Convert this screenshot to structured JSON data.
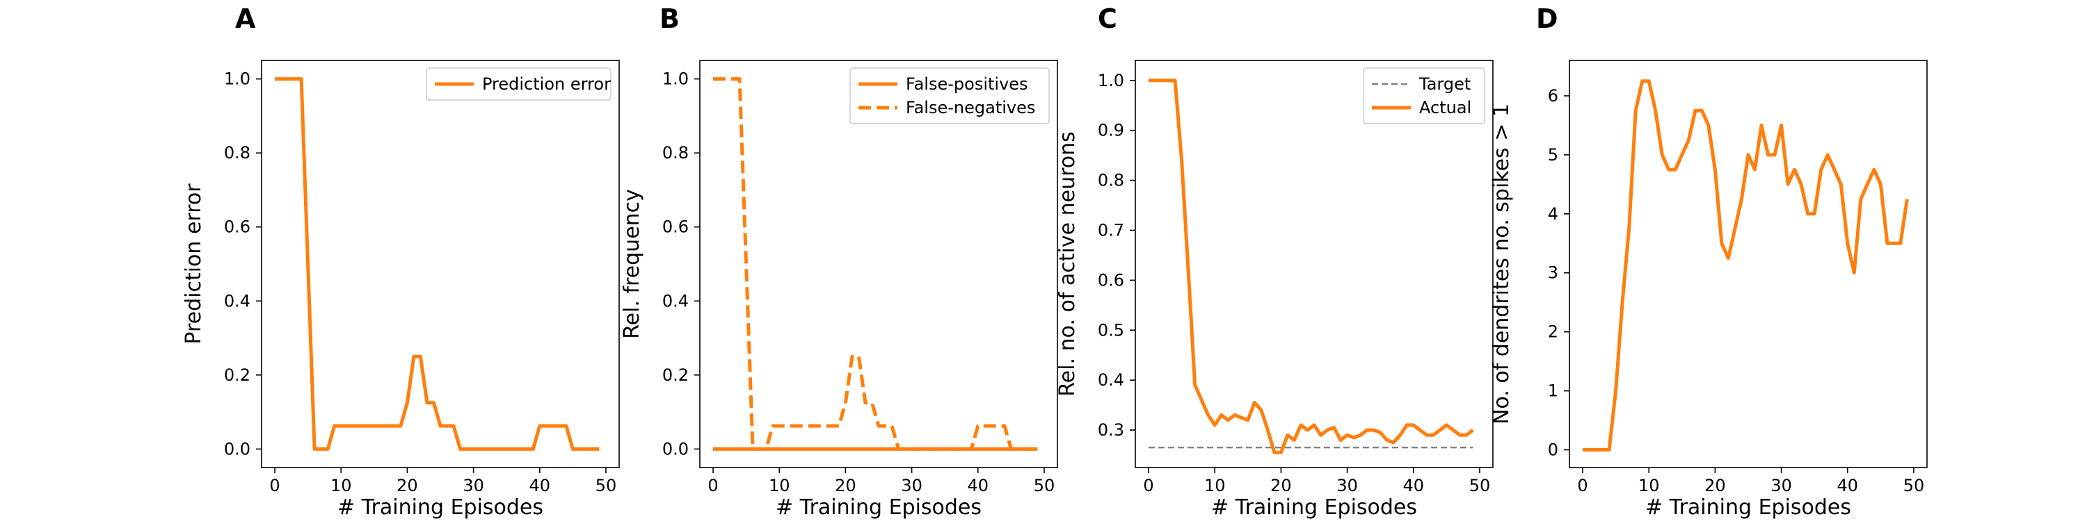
{
  "figure": {
    "panels": [
      "A",
      "B",
      "C",
      "D"
    ]
  },
  "colors": {
    "series": "#ff7f0e",
    "target": "#808080",
    "axis": "#000000",
    "legend_frame": "#cccccc"
  },
  "chart_data": [
    {
      "panel": "A",
      "type": "line",
      "title": "",
      "xlabel": "# Training Episodes",
      "ylabel": "Prediction error",
      "xlim": [
        -2,
        52
      ],
      "ylim": [
        -0.05,
        1.05
      ],
      "xticks": [
        0,
        10,
        20,
        30,
        40,
        50
      ],
      "yticks": [
        0.0,
        0.2,
        0.4,
        0.6,
        0.8,
        1.0
      ],
      "legend": "top-right",
      "grid": false,
      "series": [
        {
          "name": "Prediction error",
          "style": "solid",
          "x": [
            0,
            1,
            2,
            3,
            4,
            5,
            6,
            7,
            8,
            9,
            10,
            11,
            12,
            13,
            14,
            15,
            16,
            17,
            18,
            19,
            20,
            21,
            22,
            23,
            24,
            25,
            26,
            27,
            28,
            29,
            30,
            31,
            32,
            33,
            34,
            35,
            36,
            37,
            38,
            39,
            40,
            41,
            42,
            43,
            44,
            45,
            46,
            47,
            48,
            49
          ],
          "y": [
            1,
            1,
            1,
            1,
            1,
            0.5,
            0,
            0,
            0,
            0.0625,
            0.0625,
            0.0625,
            0.0625,
            0.0625,
            0.0625,
            0.0625,
            0.0625,
            0.0625,
            0.0625,
            0.0625,
            0.125,
            0.25,
            0.25,
            0.125,
            0.125,
            0.0625,
            0.0625,
            0.0625,
            0,
            0,
            0,
            0,
            0,
            0,
            0,
            0,
            0,
            0,
            0,
            0,
            0.0625,
            0.0625,
            0.0625,
            0.0625,
            0.0625,
            0,
            0,
            0,
            0,
            0
          ]
        }
      ]
    },
    {
      "panel": "B",
      "type": "line",
      "title": "",
      "xlabel": "# Training Episodes",
      "ylabel": "Rel. frequency",
      "xlim": [
        -2,
        52
      ],
      "ylim": [
        -0.05,
        1.05
      ],
      "xticks": [
        0,
        10,
        20,
        30,
        40,
        50
      ],
      "yticks": [
        0.0,
        0.2,
        0.4,
        0.6,
        0.8,
        1.0
      ],
      "legend": "top-right",
      "grid": false,
      "series": [
        {
          "name": "False-positives",
          "style": "solid",
          "x": [
            0,
            49
          ],
          "y": [
            0,
            0
          ]
        },
        {
          "name": "False-negatives",
          "style": "dashed",
          "x": [
            0,
            1,
            2,
            3,
            4,
            5,
            6,
            7,
            8,
            9,
            10,
            11,
            12,
            13,
            14,
            15,
            16,
            17,
            18,
            19,
            20,
            21,
            22,
            23,
            24,
            25,
            26,
            27,
            28,
            29,
            30,
            31,
            32,
            33,
            34,
            35,
            36,
            37,
            38,
            39,
            40,
            41,
            42,
            43,
            44,
            45,
            46,
            47,
            48,
            49
          ],
          "y": [
            1,
            1,
            1,
            1,
            1,
            0.5,
            0,
            0,
            0,
            0.0625,
            0.0625,
            0.0625,
            0.0625,
            0.0625,
            0.0625,
            0.0625,
            0.0625,
            0.0625,
            0.0625,
            0.0625,
            0.125,
            0.25,
            0.25,
            0.125,
            0.125,
            0.0625,
            0.0625,
            0.0625,
            0,
            0,
            0,
            0,
            0,
            0,
            0,
            0,
            0,
            0,
            0,
            0,
            0.0625,
            0.0625,
            0.0625,
            0.0625,
            0.0625,
            0,
            0,
            0,
            0,
            0
          ]
        }
      ]
    },
    {
      "panel": "C",
      "type": "line",
      "title": "",
      "xlabel": "# Training Episodes",
      "ylabel": "Rel. no. of active neurons",
      "xlim": [
        -2,
        52
      ],
      "ylim": [
        0.225,
        1.04
      ],
      "xticks": [
        0,
        10,
        20,
        30,
        40,
        50
      ],
      "yticks": [
        0.3,
        0.4,
        0.5,
        0.6,
        0.7,
        0.8,
        0.9,
        1.0
      ],
      "legend": "top-right",
      "grid": false,
      "series": [
        {
          "name": "Target",
          "style": "dashed-thin",
          "x": [
            0,
            49
          ],
          "y": [
            0.265,
            0.265
          ]
        },
        {
          "name": "Actual",
          "style": "solid",
          "x": [
            0,
            1,
            2,
            3,
            4,
            5,
            6,
            7,
            8,
            9,
            10,
            11,
            12,
            13,
            14,
            15,
            16,
            17,
            18,
            19,
            20,
            21,
            22,
            23,
            24,
            25,
            26,
            27,
            28,
            29,
            30,
            31,
            32,
            33,
            34,
            35,
            36,
            37,
            38,
            39,
            40,
            41,
            42,
            43,
            44,
            45,
            46,
            47,
            48,
            49
          ],
          "y": [
            1,
            1,
            1,
            1,
            1,
            0.84,
            0.62,
            0.39,
            0.36,
            0.33,
            0.31,
            0.33,
            0.32,
            0.33,
            0.325,
            0.32,
            0.355,
            0.34,
            0.3,
            0.255,
            0.255,
            0.29,
            0.28,
            0.31,
            0.3,
            0.31,
            0.29,
            0.3,
            0.305,
            0.28,
            0.29,
            0.285,
            0.29,
            0.3,
            0.3,
            0.295,
            0.28,
            0.275,
            0.29,
            0.31,
            0.31,
            0.3,
            0.29,
            0.29,
            0.3,
            0.31,
            0.3,
            0.29,
            0.29,
            0.3
          ]
        }
      ]
    },
    {
      "panel": "D",
      "type": "line",
      "title": "",
      "xlabel": "# Training Episodes",
      "ylabel": "No. of dendrites no. spikes > 1",
      "xlim": [
        -2,
        52
      ],
      "ylim": [
        -0.3,
        6.6
      ],
      "xticks": [
        0,
        10,
        20,
        30,
        40,
        50
      ],
      "yticks": [
        0,
        1,
        2,
        3,
        4,
        5,
        6
      ],
      "legend": "none",
      "grid": false,
      "series": [
        {
          "name": "",
          "style": "solid",
          "x": [
            0,
            1,
            2,
            3,
            4,
            5,
            6,
            7,
            8,
            9,
            10,
            11,
            12,
            13,
            14,
            15,
            16,
            17,
            18,
            19,
            20,
            21,
            22,
            23,
            24,
            25,
            26,
            27,
            28,
            29,
            30,
            31,
            32,
            33,
            34,
            35,
            36,
            37,
            38,
            39,
            40,
            41,
            42,
            43,
            44,
            45,
            46,
            47,
            48,
            49
          ],
          "y": [
            0,
            0,
            0,
            0,
            0,
            1,
            2.5,
            3.75,
            5.75,
            6.25,
            6.25,
            5.75,
            5,
            4.75,
            4.75,
            5,
            5.25,
            5.75,
            5.75,
            5.5,
            4.75,
            3.5,
            3.25,
            3.75,
            4.25,
            5,
            4.75,
            5.5,
            5,
            5,
            5.5,
            4.5,
            4.75,
            4.5,
            4,
            4,
            4.75,
            5,
            4.75,
            4.5,
            3.5,
            3,
            4.25,
            4.5,
            4.75,
            4.5,
            3.5,
            3.5,
            3.5,
            4.25
          ]
        }
      ]
    }
  ]
}
